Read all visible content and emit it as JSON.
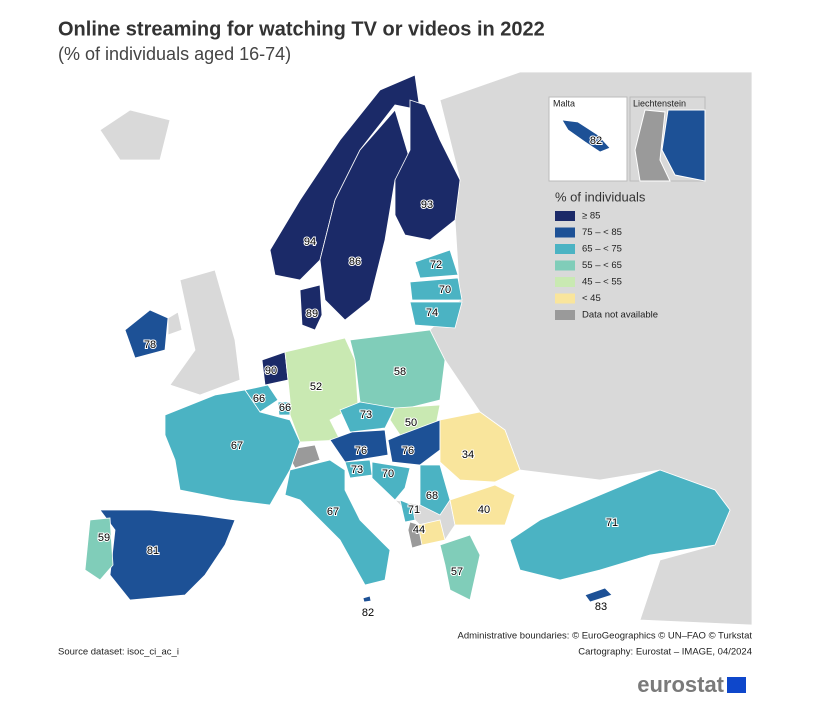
{
  "title": "Online streaming for watching TV or videos in 2022",
  "subtitle": "(% of individuals aged 16-74)",
  "legend": {
    "title": "% of individuals",
    "items": [
      {
        "value": 85,
        "label": "≥ 85",
        "color": "#1b2a68"
      },
      {
        "value": 75,
        "label": "75 – < 85",
        "color": "#1d5196"
      },
      {
        "value": 65,
        "label": "65 – < 75",
        "color": "#4bb3c3"
      },
      {
        "value": 55,
        "label": "55 – < 65",
        "color": "#80cdb9"
      },
      {
        "value": 45,
        "label": "45 – < 55",
        "color": "#c9e9b2"
      },
      {
        "label": "< 45",
        "color": "#f9e59c"
      },
      {
        "label": "Data not available",
        "color": "#9a9a9a"
      }
    ]
  },
  "insets": [
    "Malta",
    "Liechtenstein"
  ],
  "values": [
    94,
    86,
    93,
    89,
    72,
    70,
    74,
    78,
    90,
    66,
    66,
    52,
    58,
    73,
    50,
    76,
    76,
    34,
    67,
    73,
    70,
    68,
    71,
    44,
    40,
    67,
    81,
    59,
    57,
    71,
    83,
    82
  ],
  "source": "Source dataset: isoc_ci_ac_i",
  "credits": [
    "Administrative boundaries: © EuroGeographics © UN–FAO © Turkstat",
    "Cartography: Eurostat – IMAGE, 04/2024"
  ],
  "logo": "eurostat"
}
